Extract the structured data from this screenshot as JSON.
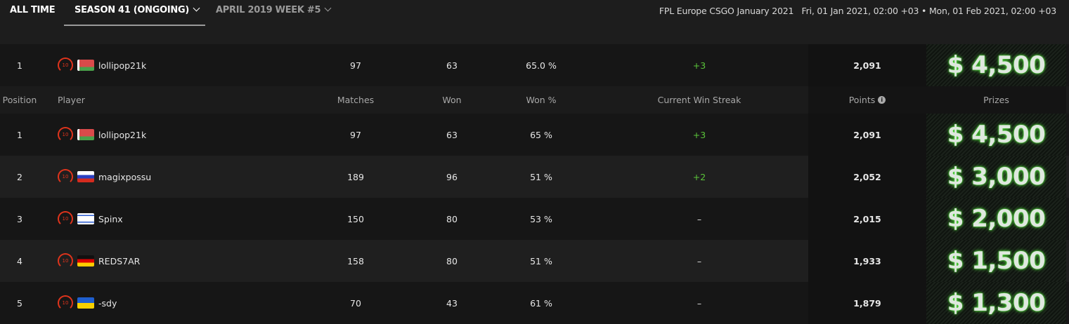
{
  "tabs": [
    {
      "label": "ALL TIME",
      "color": "#ffffff"
    },
    {
      "label": "SEASON 41 (ONGOING)",
      "color": "#ffffff",
      "active": true
    },
    {
      "label": "APRIL 2019 WEEK #5",
      "color": "#9a9a9a"
    }
  ],
  "info": "FPL Europe CSGO January 2021   Fri, 01 Jan 2021, 02:00 +03 • Mon, 01 Feb 2021, 02:00 +03",
  "headers": {
    "position": "Position",
    "player": "Player",
    "matches": "Matches",
    "won": "Won",
    "won_pct": "Won %",
    "streak": "Current Win Streak",
    "points": "Points",
    "prizes": "Prizes"
  },
  "highlight": {
    "position": "1",
    "player": "lollipop21k",
    "flag": "belarus",
    "level": "10",
    "matches": "97",
    "won": "63",
    "won_pct": "65.0 %",
    "streak": "+3",
    "points": "2,091",
    "prize": "$ 4,500"
  },
  "rows": [
    {
      "position": "1",
      "player": "lollipop21k",
      "flag": "belarus",
      "level": "10",
      "matches": "97",
      "won": "63",
      "won_pct": "65 %",
      "streak": "+3",
      "points": "2,091",
      "prize": "$ 4,500"
    },
    {
      "position": "2",
      "player": "magixpossu",
      "flag": "russia",
      "level": "10",
      "matches": "189",
      "won": "96",
      "won_pct": "51 %",
      "streak": "+2",
      "points": "2,052",
      "prize": "$ 3,000"
    },
    {
      "position": "3",
      "player": "Spinx",
      "flag": "israel",
      "level": "10",
      "matches": "150",
      "won": "80",
      "won_pct": "53 %",
      "streak": "–",
      "points": "2,015",
      "prize": "$ 2,000"
    },
    {
      "position": "4",
      "player": "REDS7AR",
      "flag": "germany",
      "level": "10",
      "matches": "158",
      "won": "80",
      "won_pct": "51 %",
      "streak": "–",
      "points": "1,933",
      "prize": "$ 1,500"
    },
    {
      "position": "5",
      "player": "-sdy",
      "flag": "ukraine",
      "level": "10",
      "matches": "70",
      "won": "43",
      "won_pct": "61 %",
      "streak": "–",
      "points": "1,879",
      "prize": "$ 1,300"
    }
  ]
}
